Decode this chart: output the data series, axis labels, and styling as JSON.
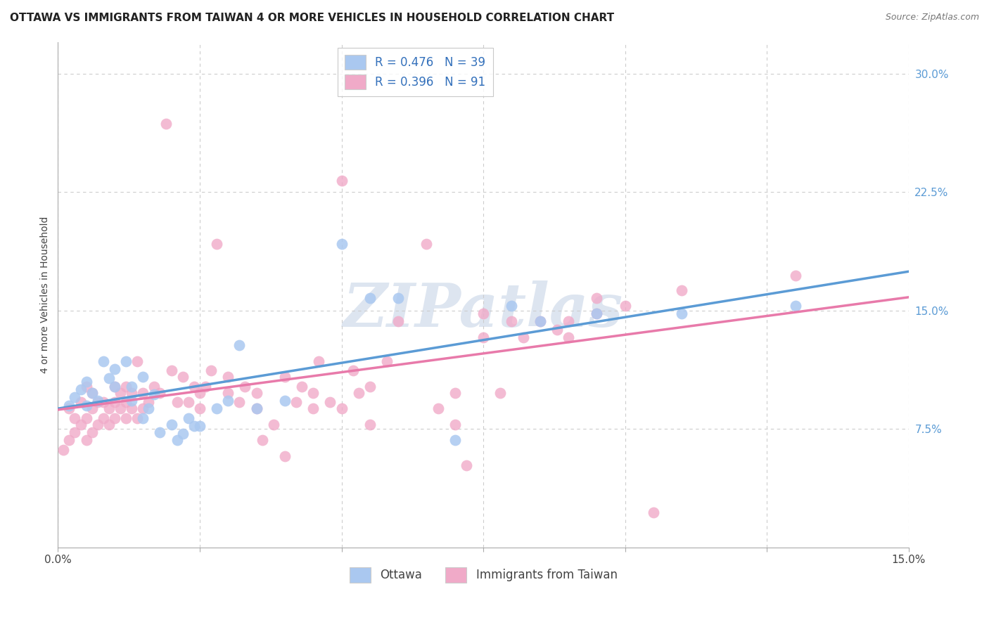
{
  "title": "OTTAWA VS IMMIGRANTS FROM TAIWAN 4 OR MORE VEHICLES IN HOUSEHOLD CORRELATION CHART",
  "source": "Source: ZipAtlas.com",
  "ylabel": "4 or more Vehicles in Household",
  "xlim": [
    0.0,
    0.15
  ],
  "ylim": [
    0.0,
    0.32
  ],
  "ytick_labels": [
    "7.5%",
    "15.0%",
    "22.5%",
    "30.0%"
  ],
  "ytick_vals": [
    0.075,
    0.15,
    0.225,
    0.3
  ],
  "xtick_vals": [
    0.0,
    0.025,
    0.05,
    0.075,
    0.1,
    0.125,
    0.15
  ],
  "xtick_labels": [
    "0.0%",
    "",
    "",
    "",
    "",
    "",
    "15.0%"
  ],
  "legend_entries": [
    {
      "label": "R = 0.476   N = 39",
      "color": "#aac8f0"
    },
    {
      "label": "R = 0.396   N = 91",
      "color": "#f0aac8"
    }
  ],
  "bottom_legend": [
    "Ottawa",
    "Immigrants from Taiwan"
  ],
  "bottom_legend_colors": [
    "#aac8f0",
    "#f0aac8"
  ],
  "ottawa_color": "#aac8f0",
  "taiwan_color": "#f0aac8",
  "line_ottawa_color": "#5b9bd5",
  "line_taiwan_color": "#e87aaa",
  "watermark": "ZIPatlas",
  "ottawa_points": [
    [
      0.002,
      0.09
    ],
    [
      0.003,
      0.095
    ],
    [
      0.004,
      0.1
    ],
    [
      0.005,
      0.09
    ],
    [
      0.005,
      0.105
    ],
    [
      0.006,
      0.098
    ],
    [
      0.007,
      0.093
    ],
    [
      0.008,
      0.118
    ],
    [
      0.009,
      0.107
    ],
    [
      0.01,
      0.102
    ],
    [
      0.01,
      0.113
    ],
    [
      0.012,
      0.118
    ],
    [
      0.013,
      0.102
    ],
    [
      0.013,
      0.093
    ],
    [
      0.015,
      0.082
    ],
    [
      0.015,
      0.108
    ],
    [
      0.016,
      0.088
    ],
    [
      0.017,
      0.097
    ],
    [
      0.018,
      0.073
    ],
    [
      0.02,
      0.078
    ],
    [
      0.021,
      0.068
    ],
    [
      0.022,
      0.072
    ],
    [
      0.023,
      0.082
    ],
    [
      0.024,
      0.077
    ],
    [
      0.025,
      0.077
    ],
    [
      0.028,
      0.088
    ],
    [
      0.03,
      0.093
    ],
    [
      0.032,
      0.128
    ],
    [
      0.035,
      0.088
    ],
    [
      0.04,
      0.093
    ],
    [
      0.05,
      0.192
    ],
    [
      0.055,
      0.158
    ],
    [
      0.06,
      0.158
    ],
    [
      0.07,
      0.068
    ],
    [
      0.08,
      0.153
    ],
    [
      0.085,
      0.143
    ],
    [
      0.095,
      0.148
    ],
    [
      0.11,
      0.148
    ],
    [
      0.13,
      0.153
    ]
  ],
  "taiwan_points": [
    [
      0.001,
      0.062
    ],
    [
      0.002,
      0.068
    ],
    [
      0.002,
      0.088
    ],
    [
      0.003,
      0.073
    ],
    [
      0.003,
      0.082
    ],
    [
      0.004,
      0.078
    ],
    [
      0.004,
      0.092
    ],
    [
      0.005,
      0.068
    ],
    [
      0.005,
      0.082
    ],
    [
      0.005,
      0.102
    ],
    [
      0.006,
      0.073
    ],
    [
      0.006,
      0.088
    ],
    [
      0.006,
      0.098
    ],
    [
      0.007,
      0.078
    ],
    [
      0.007,
      0.092
    ],
    [
      0.008,
      0.082
    ],
    [
      0.008,
      0.092
    ],
    [
      0.009,
      0.078
    ],
    [
      0.009,
      0.088
    ],
    [
      0.01,
      0.082
    ],
    [
      0.01,
      0.092
    ],
    [
      0.01,
      0.102
    ],
    [
      0.011,
      0.088
    ],
    [
      0.011,
      0.098
    ],
    [
      0.012,
      0.082
    ],
    [
      0.012,
      0.092
    ],
    [
      0.012,
      0.102
    ],
    [
      0.013,
      0.088
    ],
    [
      0.013,
      0.098
    ],
    [
      0.014,
      0.082
    ],
    [
      0.014,
      0.118
    ],
    [
      0.015,
      0.088
    ],
    [
      0.015,
      0.098
    ],
    [
      0.016,
      0.092
    ],
    [
      0.017,
      0.102
    ],
    [
      0.018,
      0.098
    ],
    [
      0.019,
      0.268
    ],
    [
      0.02,
      0.112
    ],
    [
      0.021,
      0.092
    ],
    [
      0.022,
      0.108
    ],
    [
      0.023,
      0.092
    ],
    [
      0.024,
      0.102
    ],
    [
      0.025,
      0.088
    ],
    [
      0.025,
      0.098
    ],
    [
      0.026,
      0.102
    ],
    [
      0.027,
      0.112
    ],
    [
      0.028,
      0.192
    ],
    [
      0.03,
      0.098
    ],
    [
      0.03,
      0.108
    ],
    [
      0.032,
      0.092
    ],
    [
      0.033,
      0.102
    ],
    [
      0.035,
      0.088
    ],
    [
      0.035,
      0.098
    ],
    [
      0.036,
      0.068
    ],
    [
      0.038,
      0.078
    ],
    [
      0.04,
      0.058
    ],
    [
      0.04,
      0.108
    ],
    [
      0.042,
      0.092
    ],
    [
      0.043,
      0.102
    ],
    [
      0.045,
      0.088
    ],
    [
      0.045,
      0.098
    ],
    [
      0.046,
      0.118
    ],
    [
      0.048,
      0.092
    ],
    [
      0.05,
      0.232
    ],
    [
      0.05,
      0.088
    ],
    [
      0.052,
      0.112
    ],
    [
      0.053,
      0.098
    ],
    [
      0.055,
      0.102
    ],
    [
      0.055,
      0.078
    ],
    [
      0.058,
      0.118
    ],
    [
      0.06,
      0.143
    ],
    [
      0.065,
      0.192
    ],
    [
      0.067,
      0.088
    ],
    [
      0.07,
      0.078
    ],
    [
      0.07,
      0.098
    ],
    [
      0.072,
      0.052
    ],
    [
      0.075,
      0.133
    ],
    [
      0.075,
      0.148
    ],
    [
      0.078,
      0.098
    ],
    [
      0.08,
      0.143
    ],
    [
      0.082,
      0.133
    ],
    [
      0.085,
      0.143
    ],
    [
      0.088,
      0.138
    ],
    [
      0.09,
      0.133
    ],
    [
      0.09,
      0.143
    ],
    [
      0.095,
      0.148
    ],
    [
      0.095,
      0.158
    ],
    [
      0.1,
      0.153
    ],
    [
      0.105,
      0.022
    ],
    [
      0.11,
      0.163
    ],
    [
      0.13,
      0.172
    ]
  ],
  "grid_color": "#cccccc",
  "background_color": "#ffffff",
  "title_fontsize": 11,
  "axis_label_fontsize": 10,
  "tick_fontsize": 11,
  "ytick_color": "#5b9bd5",
  "watermark_color": "#dde5f0",
  "watermark_fontsize": 62
}
